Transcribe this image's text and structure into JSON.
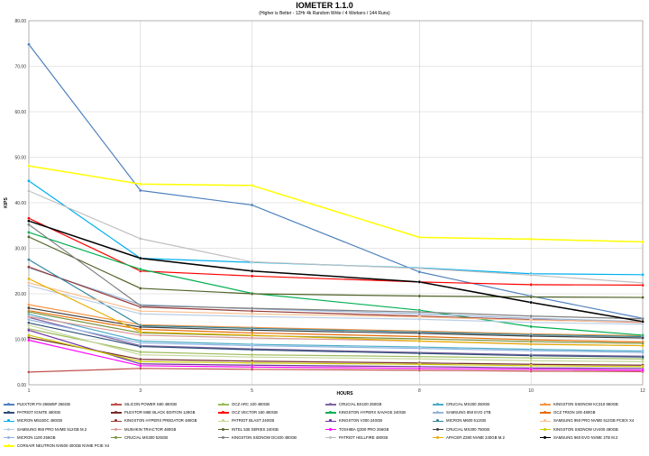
{
  "chart_data": {
    "type": "line",
    "title": "IOMETER 1.1.0",
    "subtitle": "(Higher is Better - 12Hr 4k Random Write / 4 Workers / 144 Runs)",
    "xlabel": "HOURS",
    "ylabel": "KIPS",
    "x": [
      "1",
      "3",
      "5",
      "8",
      "10",
      "12"
    ],
    "yticks": [
      "0.00",
      "10.00",
      "20.00",
      "30.00",
      "40.00",
      "50.00",
      "60.00",
      "70.00",
      "80.00"
    ],
    "ylim": [
      0,
      80
    ],
    "grid": true,
    "legend_position": "bottom",
    "series": [
      {
        "name": "PLEXTOR PX-256M5P 256GB",
        "color": "#4f81bd",
        "values": [
          74.8,
          42.7,
          39.5,
          24.8,
          19.5,
          14.6
        ]
      },
      {
        "name": "SILICON POWER S80 480GB",
        "color": "#c0504d",
        "values": [
          2.8,
          3.6,
          3.4,
          3.2,
          3.0,
          2.9
        ]
      },
      {
        "name": "OCZ ARC 100 480GB",
        "color": "#9bbb59",
        "values": [
          12.3,
          7.2,
          6.6,
          6.2,
          5.9,
          5.7
        ]
      },
      {
        "name": "CRUCIAL BX100 250GB",
        "color": "#8064a2",
        "values": [
          14.8,
          8.6,
          7.9,
          7.1,
          6.6,
          6.3
        ]
      },
      {
        "name": "CRUCIAL MX200 250GB",
        "color": "#4bacc6",
        "values": [
          15.5,
          9.6,
          8.9,
          8.3,
          7.8,
          7.4
        ]
      },
      {
        "name": "KINGSTON SSDNOW KC310 960GB",
        "color": "#f79646",
        "values": [
          17.6,
          13.2,
          12.6,
          11.8,
          11.2,
          10.8
        ]
      },
      {
        "name": "PATRIOT IGNITE 480GB",
        "color": "#2c4d75",
        "values": [
          13.6,
          8.4,
          7.7,
          6.9,
          6.4,
          6.1
        ]
      },
      {
        "name": "PLEXTOR M6E BLACK EDITION 128GB",
        "color": "#772c2a",
        "values": [
          10.4,
          5.6,
          5.2,
          4.8,
          4.5,
          4.3
        ]
      },
      {
        "name": "OCZ VECTOR 180 480GB",
        "color": "#ff0000",
        "values": [
          36.6,
          25.0,
          23.9,
          22.6,
          22.0,
          21.9
        ]
      },
      {
        "name": "KINGSTON HYPERX SAVAGE 240GB",
        "color": "#00b050",
        "values": [
          33.5,
          25.4,
          20.1,
          16.4,
          12.8,
          10.9
        ]
      },
      {
        "name": "SAMSUNG 850 EVO 2TB",
        "color": "#95b3d7",
        "values": [
          25.7,
          17.6,
          16.7,
          15.6,
          14.6,
          13.9
        ]
      },
      {
        "name": "OCZ TRION 100 480GB",
        "color": "#e46c0a",
        "values": [
          16.3,
          12.2,
          11.4,
          10.6,
          9.9,
          9.4
        ]
      },
      {
        "name": "MICRON M510DC 480GB",
        "color": "#00b0f0",
        "values": [
          44.8,
          27.8,
          26.9,
          25.7,
          24.4,
          24.2
        ]
      },
      {
        "name": "KINGSTON HYPERX PREDATOR 480GB",
        "color": "#953735",
        "values": [
          25.9,
          17.1,
          16.2,
          15.1,
          14.3,
          13.7
        ]
      },
      {
        "name": "PATRIOT BLAST 240GB",
        "color": "#c3d69b",
        "values": [
          13.1,
          6.6,
          6.1,
          5.7,
          5.3,
          5.1
        ]
      },
      {
        "name": "KINGSTON V300 240GB",
        "color": "#7030a0",
        "values": [
          12.0,
          4.6,
          4.3,
          4.0,
          3.7,
          3.6
        ]
      },
      {
        "name": "MICRON M600 512GB",
        "color": "#31859c",
        "values": [
          27.5,
          13.0,
          12.4,
          11.6,
          11.0,
          10.6
        ]
      },
      {
        "name": "SAMSUNG 950 PRO NVME 512GB PCIEX X4",
        "color": "#fac090",
        "values": [
          22.4,
          16.2,
          15.6,
          14.9,
          14.2,
          13.8
        ]
      },
      {
        "name": "SAMSUNG 950 PRO NVME 512GB M.2",
        "color": "#b9cde5",
        "values": [
          21.8,
          15.6,
          15.0,
          14.4,
          13.7,
          13.3
        ]
      },
      {
        "name": "MUSHKIN TRIACTOR 480GB",
        "color": "#d99694",
        "values": [
          15.0,
          10.9,
          10.3,
          9.6,
          9.0,
          8.6
        ]
      },
      {
        "name": "INTEL 535 SERIES 240GB",
        "color": "#4f6228",
        "values": [
          32.5,
          21.2,
          20.0,
          19.5,
          19.3,
          19.2
        ]
      },
      {
        "name": "TOSHIBA Q300 PRO 256GB",
        "color": "#ff00ff",
        "values": [
          9.8,
          4.2,
          3.9,
          3.6,
          3.4,
          3.2
        ]
      },
      {
        "name": "CRUCIAL MX300 750GB",
        "color": "#3f3f3f",
        "values": [
          16.9,
          12.7,
          12.0,
          11.3,
          10.7,
          10.3
        ]
      },
      {
        "name": "KINGSTON SSDNOW UV400 480GB",
        "color": "#c9c900",
        "values": [
          10.9,
          5.1,
          4.8,
          4.5,
          4.2,
          4.0
        ]
      },
      {
        "name": "MICRON 1100 256GB",
        "color": "#8eb4e3",
        "values": [
          14.3,
          9.2,
          8.6,
          8.0,
          7.5,
          7.1
        ]
      },
      {
        "name": "CRUCIAL MX300 525GB",
        "color": "#76923c",
        "values": [
          16.0,
          11.4,
          10.8,
          10.1,
          9.5,
          9.1
        ]
      },
      {
        "name": "KINGSTON SSDNOW DC400 480GB",
        "color": "#7f7f7f",
        "values": [
          35.2,
          17.4,
          16.8,
          16.0,
          15.1,
          14.5
        ]
      },
      {
        "name": "PATRIOT HELLFIRE 480GB",
        "color": "#bfbfbf",
        "values": [
          42.6,
          32.1,
          27.0,
          25.6,
          24.1,
          22.4
        ]
      },
      {
        "name": "APACER Z280 NVME 240GB M.2",
        "color": "#e5b000",
        "values": [
          23.3,
          11.6,
          10.9,
          9.6,
          8.9,
          8.6
        ]
      },
      {
        "name": "SAMSUNG 960 EVO NVME 1TB M.2",
        "color": "#000000",
        "values": [
          36.0,
          27.8,
          25.0,
          22.6,
          18.1,
          13.9
        ]
      },
      {
        "name": "CORSAIR NEUTRON NX500 400GB NVME PCIE X4",
        "color": "#ffff00",
        "values": [
          48.1,
          44.1,
          43.8,
          32.4,
          32.0,
          31.4
        ]
      }
    ]
  }
}
